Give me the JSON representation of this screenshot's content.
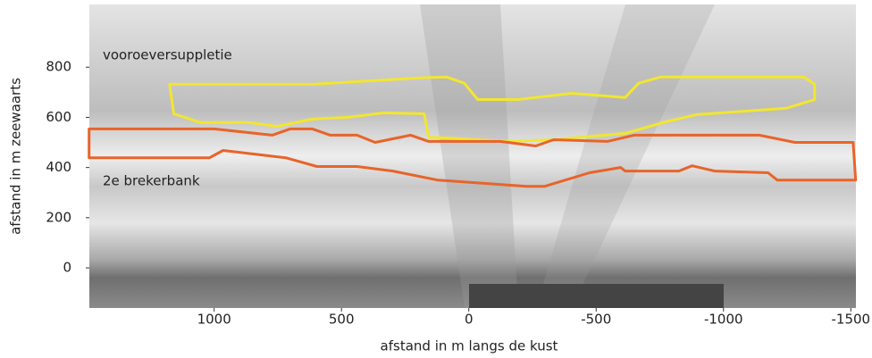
{
  "chart_data": {
    "type": "polygon",
    "xlabel": "afstand in m langs de kust",
    "ylabel": "afstand in m zeewaarts",
    "xlim": [
      1490,
      -1520
    ],
    "xticks": [
      1000,
      500,
      0,
      -500,
      -1000,
      -1500
    ],
    "ylim": [
      -160,
      1050
    ],
    "yticks": [
      0,
      200,
      400,
      600,
      800
    ],
    "series": [
      {
        "name": "vooroeversuppletie",
        "color": "#f2e630",
        "x": [
          1175,
          614,
          193,
          88,
          18,
          -35,
          -193,
          -404,
          -614,
          -667,
          -754,
          -965,
          -1316,
          -1358,
          -1358,
          -1246,
          -895,
          -772,
          -614,
          -333,
          -158,
          158,
          175,
          333,
          474,
          614,
          754,
          860,
          1053,
          1158
        ],
        "y": [
          732,
          732,
          757,
          761,
          736,
          671,
          671,
          696,
          679,
          736,
          761,
          761,
          761,
          732,
          671,
          636,
          611,
          582,
          536,
          511,
          504,
          521,
          614,
          618,
          600,
          593,
          564,
          579,
          579,
          614
        ]
      },
      {
        "name": "2e brekerbank",
        "color": "#e8642a",
        "x": [
          1491,
          1000,
          772,
          702,
          614,
          544,
          439,
          368,
          228,
          158,
          -123,
          -263,
          -333,
          -544,
          -649,
          -1140,
          -1281,
          -1509,
          -1519,
          -1211,
          -1175,
          -965,
          -877,
          -825,
          -614,
          -596,
          -474,
          -298,
          -228,
          123,
          298,
          439,
          596,
          719,
          965,
          1018,
          1140,
          1491
        ],
        "y": [
          554,
          554,
          529,
          554,
          554,
          529,
          529,
          500,
          529,
          504,
          504,
          486,
          511,
          504,
          529,
          529,
          500,
          500,
          350,
          350,
          379,
          386,
          407,
          386,
          386,
          400,
          379,
          325,
          325,
          350,
          386,
          404,
          404,
          439,
          468,
          439,
          439,
          439
        ]
      }
    ]
  }
}
